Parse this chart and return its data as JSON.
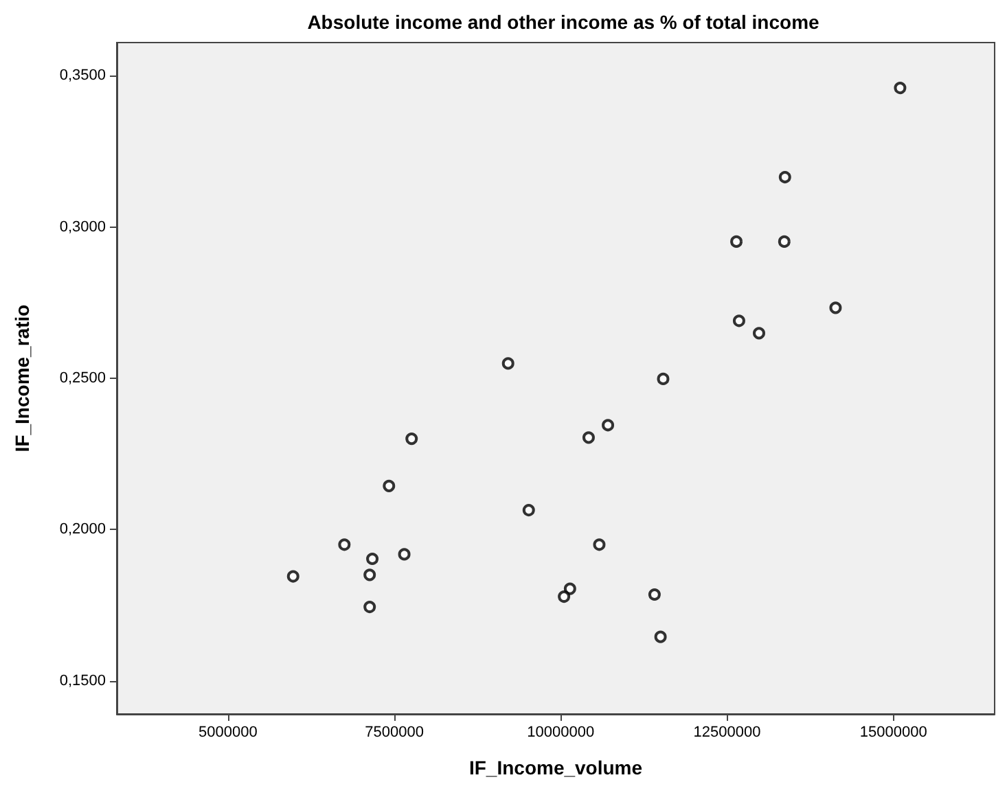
{
  "chart_data": {
    "type": "scatter",
    "title": "Absolute income and other income as % of total income",
    "xlabel": "IF_Income_volume",
    "ylabel": "IF_Income_ratio",
    "marker": "circle",
    "grid": false,
    "xlim": [
      3330000,
      16520000
    ],
    "xticks": [
      5000000,
      7500000,
      10000000,
      12500000,
      15000000
    ],
    "ylim": [
      0.139,
      0.361
    ],
    "yticks": [
      {
        "value": 0.15,
        "label": "0,1500"
      },
      {
        "value": 0.2,
        "label": "0,2000"
      },
      {
        "value": 0.25,
        "label": "0,2500"
      },
      {
        "value": 0.3,
        "label": "0,3000"
      },
      {
        "value": 0.35,
        "label": "0,3500"
      }
    ],
    "series": [
      {
        "color": "#000000",
        "x": [
          15100000,
          13370000,
          12640000,
          13360000,
          14130000,
          12680000,
          12980000,
          9210000,
          11540000,
          10710000,
          10420000,
          7760000,
          7420000,
          9520000,
          6750000,
          10580000,
          7650000,
          7170000,
          7130000,
          5980000,
          10140000,
          10050000,
          11410000,
          7130000,
          11500000
        ],
        "values": [
          0.346,
          0.3165,
          0.2952,
          0.2952,
          0.2733,
          0.269,
          0.2649,
          0.2549,
          0.2498,
          0.2345,
          0.2304,
          0.23,
          0.2144,
          0.2064,
          0.195,
          0.195,
          0.1918,
          0.1903,
          0.185,
          0.1845,
          0.1804,
          0.1778,
          0.1785,
          0.1744,
          0.1645
        ]
      }
    ]
  }
}
